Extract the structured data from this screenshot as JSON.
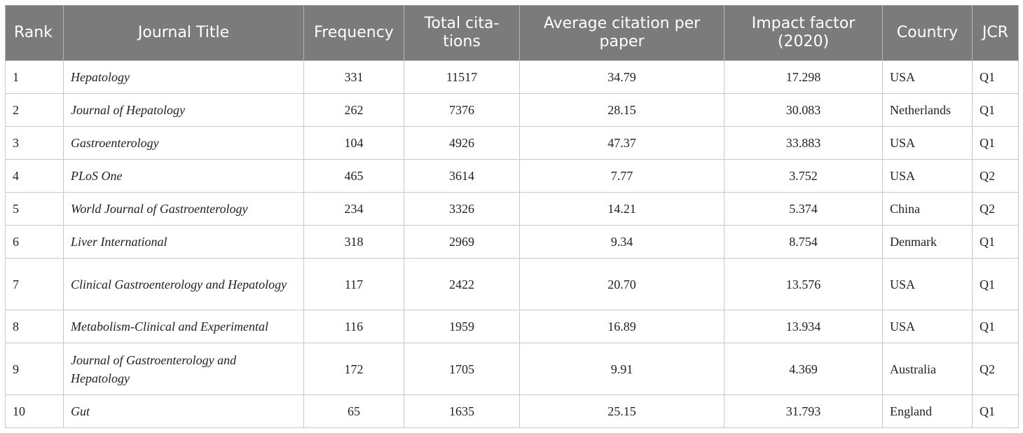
{
  "table": {
    "headers": {
      "rank": "Rank",
      "title": "Journal Title",
      "frequency": "Frequency",
      "total_citations": "Total cita-tions",
      "avg_citation": "Average citation per paper",
      "impact_factor": "Impact factor (2020)",
      "country": "Country",
      "jcr": "JCR"
    },
    "rows": [
      {
        "rank": "1",
        "title": "Hepatology",
        "frequency": "331",
        "total_citations": "11517",
        "avg_citation": "34.79",
        "impact_factor": "17.298",
        "country": "USA",
        "jcr": "Q1"
      },
      {
        "rank": "2",
        "title": "Journal of Hepatology",
        "frequency": "262",
        "total_citations": "7376",
        "avg_citation": "28.15",
        "impact_factor": "30.083",
        "country": "Netherlands",
        "jcr": "Q1"
      },
      {
        "rank": "3",
        "title": "Gastroenterology",
        "frequency": "104",
        "total_citations": "4926",
        "avg_citation": "47.37",
        "impact_factor": "33.883",
        "country": "USA",
        "jcr": "Q1"
      },
      {
        "rank": "4",
        "title": "PLoS One",
        "frequency": "465",
        "total_citations": "3614",
        "avg_citation": "7.77",
        "impact_factor": "3.752",
        "country": "USA",
        "jcr": "Q2"
      },
      {
        "rank": "5",
        "title": "World Journal of Gastroenterology",
        "frequency": "234",
        "total_citations": "3326",
        "avg_citation": "14.21",
        "impact_factor": "5.374",
        "country": "China",
        "jcr": "Q2"
      },
      {
        "rank": "6",
        "title": "Liver International",
        "frequency": "318",
        "total_citations": "2969",
        "avg_citation": "9.34",
        "impact_factor": "8.754",
        "country": "Denmark",
        "jcr": "Q1"
      },
      {
        "rank": "7",
        "title": "Clinical Gastroenterology and Hepatology",
        "frequency": "117",
        "total_citations": "2422",
        "avg_citation": "20.70",
        "impact_factor": "13.576",
        "country": "USA",
        "jcr": "Q1"
      },
      {
        "rank": "8",
        "title": "Metabolism-Clinical and Experimental",
        "frequency": "116",
        "total_citations": "1959",
        "avg_citation": "16.89",
        "impact_factor": "13.934",
        "country": "USA",
        "jcr": "Q1"
      },
      {
        "rank": "9",
        "title": "Journal of Gastroenterology and Hepatology",
        "frequency": "172",
        "total_citations": "1705",
        "avg_citation": "9.91",
        "impact_factor": "4.369",
        "country": "Australia",
        "jcr": "Q2"
      },
      {
        "rank": "10",
        "title": "Gut",
        "frequency": "65",
        "total_citations": "1635",
        "avg_citation": "25.15",
        "impact_factor": "31.793",
        "country": "England",
        "jcr": "Q1"
      }
    ]
  },
  "colors": {
    "header_bg": "#7b7b7b",
    "header_text": "#ffffff",
    "border": "#c8c8c8",
    "body_text": "#222222"
  }
}
